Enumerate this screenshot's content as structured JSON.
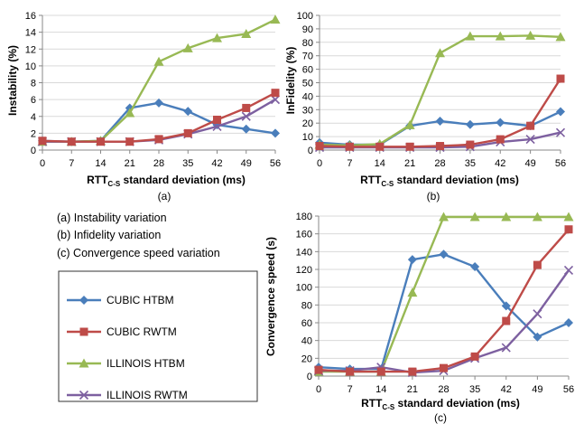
{
  "captions": {
    "a": "(a)",
    "b": "(b)",
    "c": "(c)"
  },
  "notes": [
    "(a) Instability variation",
    "(b) Infidelity variation",
    "(c) Convergence speed variation"
  ],
  "xlabel_main": "RTT",
  "xlabel_sub": "C-S",
  "xlabel_rest": " standard deviation (ms)",
  "series_styles": [
    {
      "name": "CUBIC HTBM",
      "color": "#4a7ebb",
      "marker": "diamond"
    },
    {
      "name": "CUBIC RWTM",
      "color": "#be4b48",
      "marker": "square"
    },
    {
      "name": "ILLINOIS HTBM",
      "color": "#98b954",
      "marker": "triangle"
    },
    {
      "name": "ILLINOIS RWTM",
      "color": "#7d60a0",
      "marker": "x"
    }
  ],
  "chart_data": [
    {
      "type": "line",
      "ylabel": "Instability (%)",
      "categories": [
        "0",
        "7",
        "14",
        "21",
        "28",
        "35",
        "42",
        "49",
        "56"
      ],
      "ylim": [
        0,
        16
      ],
      "yticks": [
        0,
        2,
        4,
        6,
        8,
        10,
        12,
        14,
        16
      ],
      "series": [
        {
          "name": "CUBIC HTBM",
          "values": [
            1.1,
            1.0,
            1.1,
            5.0,
            5.6,
            4.6,
            3.0,
            2.5,
            2.0
          ]
        },
        {
          "name": "CUBIC RWTM",
          "values": [
            1.1,
            1.0,
            1.0,
            1.0,
            1.3,
            2.0,
            3.6,
            5.0,
            6.8
          ]
        },
        {
          "name": "ILLINOIS HTBM",
          "values": [
            1.0,
            1.0,
            1.1,
            4.4,
            10.5,
            12.1,
            13.3,
            13.8,
            15.5
          ]
        },
        {
          "name": "ILLINOIS RWTM",
          "values": [
            1.0,
            1.0,
            1.0,
            1.0,
            1.2,
            1.9,
            2.8,
            4.0,
            6.0
          ]
        }
      ]
    },
    {
      "type": "line",
      "ylabel": "InFidelity (%)",
      "categories": [
        "0",
        "7",
        "14",
        "21",
        "28",
        "35",
        "42",
        "49",
        "56"
      ],
      "ylim": [
        0,
        100
      ],
      "yticks": [
        0,
        10,
        20,
        30,
        40,
        50,
        60,
        70,
        80,
        90,
        100
      ],
      "series": [
        {
          "name": "CUBIC HTBM",
          "values": [
            5.5,
            4.0,
            4.0,
            18.0,
            21.5,
            19.0,
            20.5,
            18.0,
            28.5
          ]
        },
        {
          "name": "CUBIC RWTM",
          "values": [
            3.0,
            2.5,
            2.5,
            2.5,
            3.0,
            4.0,
            8.0,
            18.0,
            53.0
          ]
        },
        {
          "name": "ILLINOIS HTBM",
          "values": [
            4.0,
            3.5,
            4.5,
            18.5,
            72.0,
            84.5,
            84.5,
            85.0,
            84.0
          ]
        },
        {
          "name": "ILLINOIS RWTM",
          "values": [
            2.0,
            2.0,
            2.0,
            2.0,
            2.0,
            2.5,
            6.0,
            8.0,
            13.0
          ]
        }
      ]
    },
    {
      "type": "line",
      "ylabel": "Convergence speed (s)",
      "categories": [
        "0",
        "7",
        "14",
        "21",
        "28",
        "35",
        "42",
        "49",
        "56"
      ],
      "ylim": [
        0,
        180
      ],
      "yticks": [
        0,
        20,
        40,
        60,
        80,
        100,
        120,
        140,
        160,
        180
      ],
      "legend": "left",
      "series": [
        {
          "name": "CUBIC HTBM",
          "values": [
            10,
            8,
            8,
            131,
            137,
            123,
            79,
            44,
            60
          ]
        },
        {
          "name": "CUBIC RWTM",
          "values": [
            7,
            5,
            5,
            5,
            9,
            22,
            62,
            125,
            165
          ]
        },
        {
          "name": "ILLINOIS HTBM",
          "values": [
            5,
            5,
            5,
            94,
            179,
            179,
            179,
            179,
            179
          ]
        },
        {
          "name": "ILLINOIS RWTM",
          "values": [
            6,
            6,
            10,
            4,
            6,
            20,
            32,
            70,
            119
          ]
        }
      ]
    }
  ]
}
